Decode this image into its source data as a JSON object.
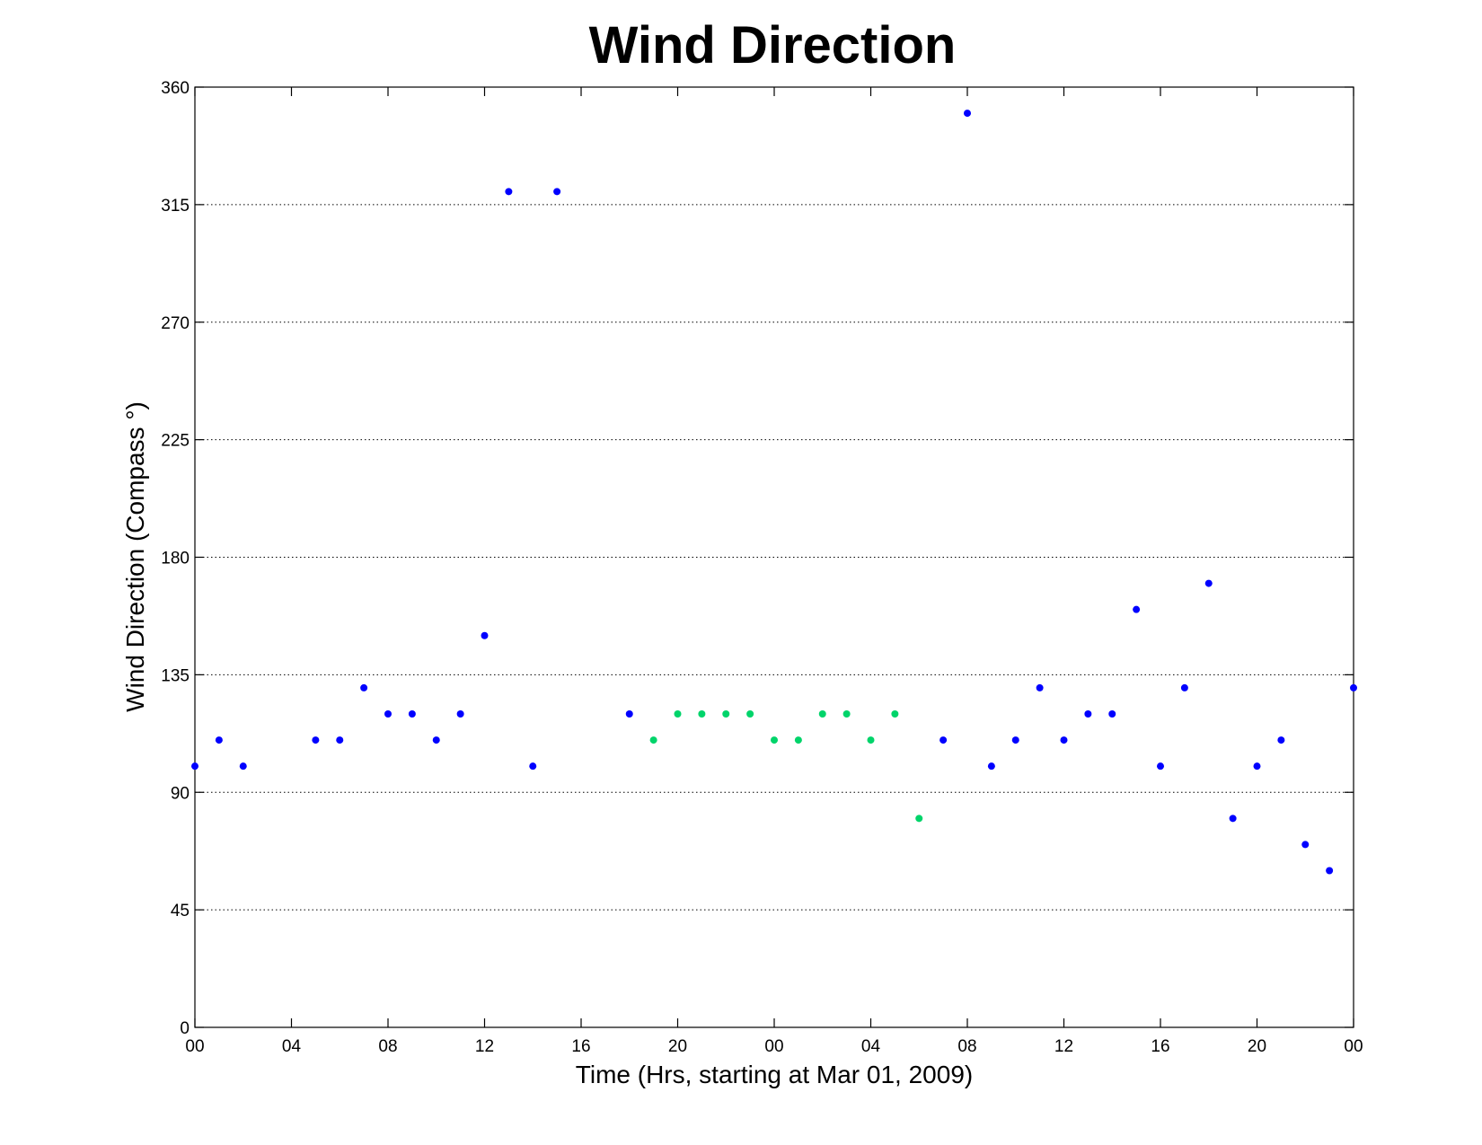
{
  "chart_data": {
    "type": "scatter",
    "title": "Wind Direction",
    "xlabel": "Time (Hrs, starting at Mar 01, 2009)",
    "ylabel": "Wind Direction (Compass  °)",
    "xlim": [
      0,
      48
    ],
    "ylim": [
      0,
      360
    ],
    "x_ticks": [
      0,
      4,
      8,
      12,
      16,
      20,
      24,
      28,
      32,
      36,
      40,
      44,
      48
    ],
    "x_tick_labels": [
      "00",
      "04",
      "08",
      "12",
      "16",
      "20",
      "00",
      "04",
      "08",
      "12",
      "16",
      "20",
      "00"
    ],
    "y_ticks": [
      0,
      45,
      90,
      135,
      180,
      225,
      270,
      315,
      360
    ],
    "y_tick_labels": [
      "0",
      "45",
      "90",
      "135",
      "180",
      "225",
      "270",
      "315",
      "360"
    ],
    "grid": "horizontal",
    "series": [
      {
        "color": "#0000ff",
        "points": [
          [
            0,
            100
          ],
          [
            1,
            110
          ],
          [
            2,
            100
          ],
          [
            5,
            110
          ],
          [
            6,
            110
          ],
          [
            7,
            130
          ],
          [
            8,
            120
          ],
          [
            9,
            120
          ],
          [
            10,
            110
          ],
          [
            11,
            120
          ],
          [
            12,
            150
          ],
          [
            13,
            320
          ],
          [
            14,
            100
          ],
          [
            15,
            320
          ],
          [
            18,
            120
          ],
          [
            31,
            110
          ],
          [
            32,
            350
          ],
          [
            33,
            100
          ],
          [
            34,
            110
          ],
          [
            35,
            130
          ],
          [
            36,
            110
          ],
          [
            37,
            120
          ],
          [
            38,
            120
          ],
          [
            39,
            160
          ],
          [
            40,
            100
          ],
          [
            41,
            130
          ],
          [
            42,
            170
          ],
          [
            43,
            80
          ],
          [
            44,
            100
          ],
          [
            45,
            110
          ],
          [
            46,
            70
          ],
          [
            47,
            60
          ],
          [
            48,
            130
          ]
        ]
      },
      {
        "color": "#00d46a",
        "points": [
          [
            19,
            110
          ],
          [
            20,
            120
          ],
          [
            21,
            120
          ],
          [
            22,
            120
          ],
          [
            23,
            120
          ],
          [
            24,
            110
          ],
          [
            25,
            110
          ],
          [
            26,
            120
          ],
          [
            27,
            120
          ],
          [
            28,
            110
          ],
          [
            29,
            120
          ],
          [
            30,
            80
          ]
        ]
      }
    ]
  }
}
